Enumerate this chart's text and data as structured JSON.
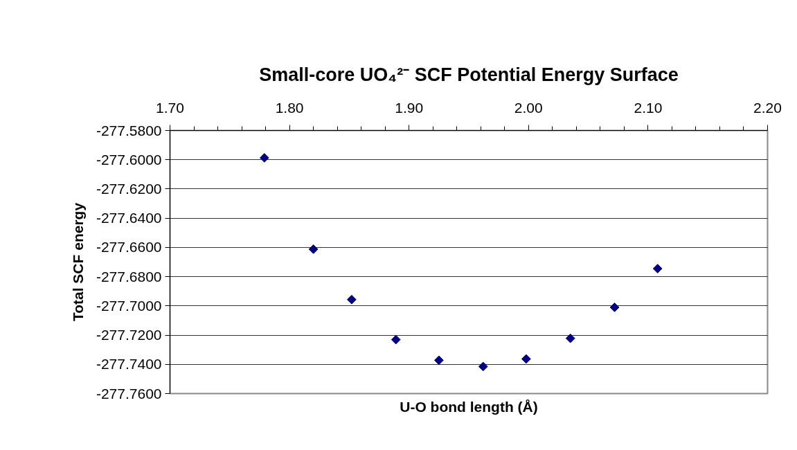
{
  "chart_data": {
    "type": "scatter",
    "title": "Small-core UO₄²⁻ SCF Potential Energy Surface",
    "xlabel": "U-O bond length (Å)",
    "ylabel": "Total SCF energy",
    "x": [
      1.779,
      1.82,
      1.852,
      1.889,
      1.925,
      1.962,
      1.998,
      2.035,
      2.072,
      2.108
    ],
    "series": [
      {
        "color": "#000080",
        "values": [
          -277.5987,
          -277.6612,
          -277.6957,
          -277.7231,
          -277.7372,
          -277.7415,
          -277.7363,
          -277.7222,
          -277.701,
          -277.6745
        ]
      }
    ],
    "marker": "diamond",
    "grid": "y",
    "xlim": [
      1.7,
      2.2
    ],
    "xticks": [
      {
        "value": 1.7,
        "label": "1.70"
      },
      {
        "value": 1.8,
        "label": "1.80"
      },
      {
        "value": 1.9,
        "label": "1.90"
      },
      {
        "value": 2.0,
        "label": "2.00"
      },
      {
        "value": 2.1,
        "label": "2.10"
      },
      {
        "value": 2.2,
        "label": "2.20"
      }
    ],
    "ylim": [
      -277.76,
      -277.58
    ],
    "yticks": [
      {
        "value": -277.58,
        "label": "-277.5800"
      },
      {
        "value": -277.6,
        "label": "-277.6000"
      },
      {
        "value": -277.62,
        "label": "-277.6200"
      },
      {
        "value": -277.64,
        "label": "-277.6400"
      },
      {
        "value": -277.66,
        "label": "-277.6600"
      },
      {
        "value": -277.68,
        "label": "-277.6800"
      },
      {
        "value": -277.7,
        "label": "-277.7000"
      },
      {
        "value": -277.72,
        "label": "-277.7200"
      },
      {
        "value": -277.74,
        "label": "-277.7400"
      },
      {
        "value": -277.76,
        "label": "-277.7600"
      }
    ]
  }
}
